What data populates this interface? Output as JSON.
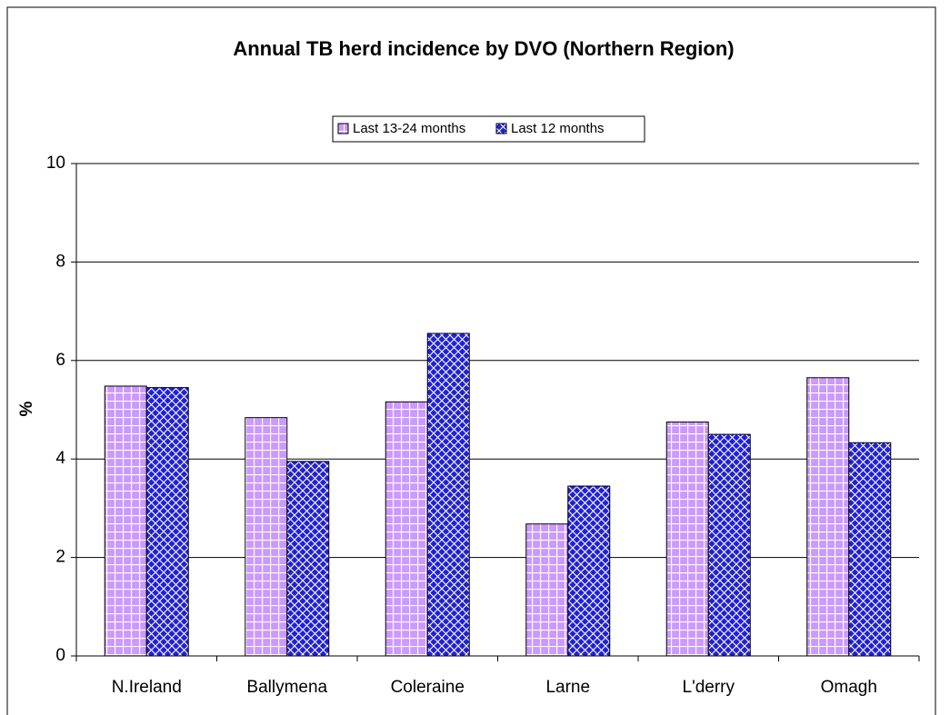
{
  "chart_data": {
    "type": "bar",
    "title": "Annual TB herd incidence by DVO (Northern Region)",
    "y_label": "%",
    "categories": [
      "N.Ireland",
      "Ballymena",
      "Coleraine",
      "Larne",
      "L'derry",
      "Omagh"
    ],
    "series": [
      {
        "name": "Last 13-24 months",
        "color": "#cc99ff",
        "pattern": "grid",
        "values": [
          5.48,
          4.84,
          5.16,
          2.68,
          4.75,
          5.65
        ]
      },
      {
        "name": "Last 12 months",
        "color": "#2020d8",
        "pattern": "diagonal-cross",
        "values": [
          5.45,
          3.95,
          6.55,
          3.45,
          4.5,
          4.33
        ]
      }
    ],
    "ylim": [
      0,
      10
    ],
    "yticks": [
      0,
      2,
      4,
      6,
      8,
      10
    ],
    "grid": true,
    "legend": "top"
  }
}
